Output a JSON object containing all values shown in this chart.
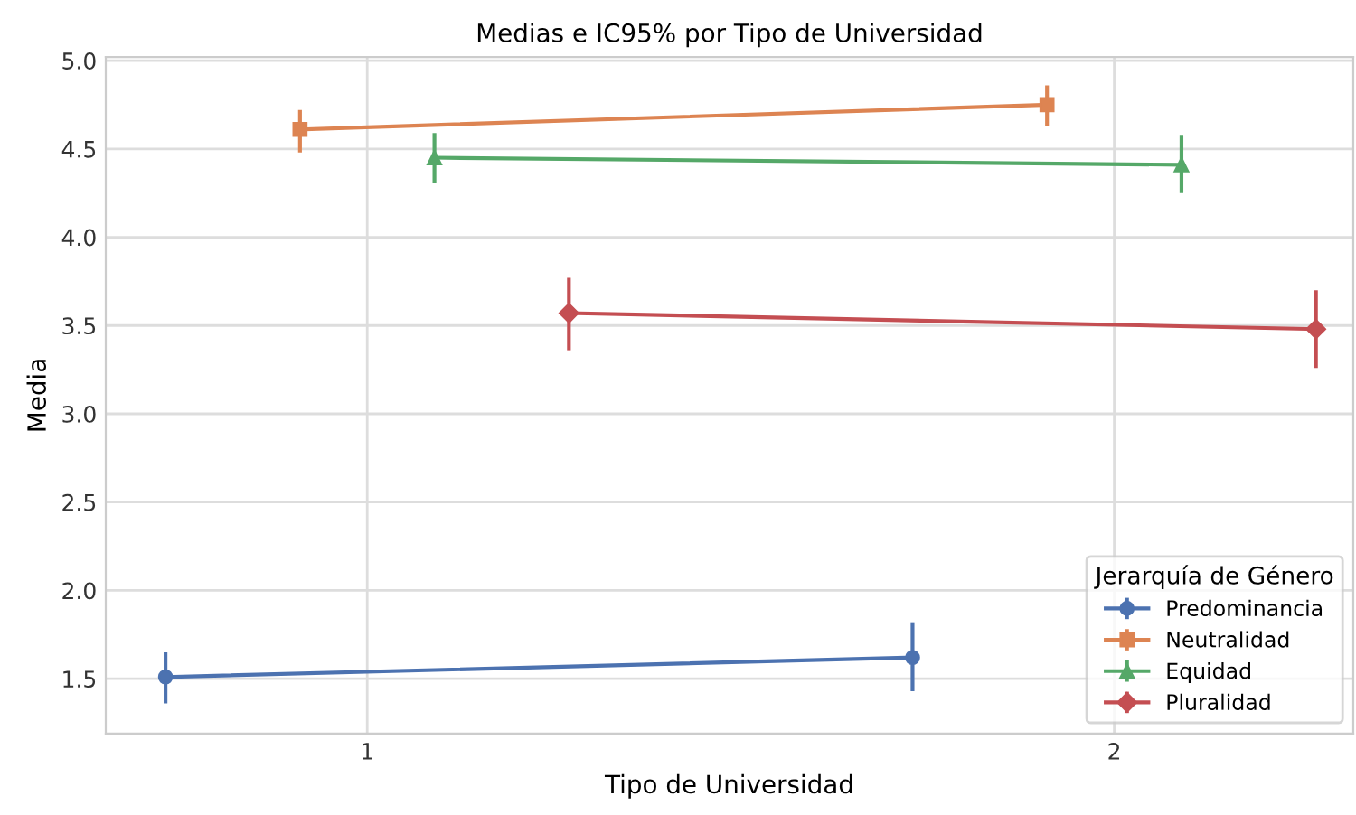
{
  "chart_data": {
    "type": "line",
    "title": "Medias e IC95% por Tipo de Universidad",
    "xlabel": "Tipo de Universidad",
    "ylabel": "Media",
    "legend_title": "Jerarquía de Género",
    "legend": "bottom right",
    "grid": true,
    "xlim": [
      0.65,
      2.32
    ],
    "xticks": [
      1,
      2
    ],
    "ylim": [
      1.19,
      5.02
    ],
    "yticks": [
      {
        "value": 1.5,
        "label": "1.5"
      },
      {
        "value": 2.0,
        "label": "2.0"
      },
      {
        "value": 2.5,
        "label": "2.5"
      },
      {
        "value": 3.0,
        "label": "3.0"
      },
      {
        "value": 3.5,
        "label": "3.5"
      },
      {
        "value": 4.0,
        "label": "4.0"
      },
      {
        "value": 4.5,
        "label": "4.5"
      },
      {
        "value": 5.0,
        "label": "5.0"
      }
    ],
    "series": [
      {
        "name": "Predominancia",
        "color": "#4c72b0",
        "marker": "circle",
        "x": [
          0.73,
          1.73
        ],
        "values": [
          1.51,
          1.62
        ],
        "errors": [
          [
            1.36,
            1.65
          ],
          [
            1.43,
            1.82
          ]
        ]
      },
      {
        "name": "Neutralidad",
        "color": "#dd8452",
        "marker": "square",
        "x": [
          0.91,
          1.91
        ],
        "values": [
          4.61,
          4.75
        ],
        "errors": [
          [
            4.48,
            4.72
          ],
          [
            4.63,
            4.86
          ]
        ]
      },
      {
        "name": "Equidad",
        "color": "#55a868",
        "marker": "triangle",
        "x": [
          1.09,
          2.09
        ],
        "values": [
          4.45,
          4.41
        ],
        "errors": [
          [
            4.31,
            4.59
          ],
          [
            4.25,
            4.58
          ]
        ]
      },
      {
        "name": "Pluralidad",
        "color": "#c44e52",
        "marker": "diamond",
        "x": [
          1.27,
          2.27
        ],
        "values": [
          3.57,
          3.48
        ],
        "errors": [
          [
            3.36,
            3.77
          ],
          [
            3.26,
            3.7
          ]
        ]
      }
    ]
  }
}
